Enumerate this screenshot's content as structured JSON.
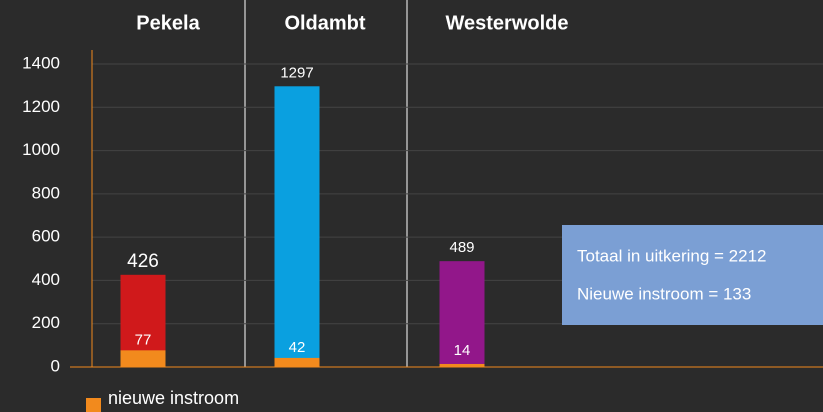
{
  "chart_data": {
    "type": "bar",
    "categories": [
      "Pekela",
      "Oldambt",
      "Westerwolde"
    ],
    "series": [
      {
        "colors": [
          "#d0191b",
          "#0aa0e0",
          "#92178a"
        ],
        "values": [
          426,
          1297,
          489
        ]
      },
      {
        "name": "nieuwe instroom",
        "color": "#f28a1d",
        "values": [
          77,
          42,
          14
        ]
      }
    ],
    "ylim": [
      0,
      1400
    ],
    "yticks": [
      0,
      200,
      400,
      600,
      800,
      1000,
      1200,
      1400
    ],
    "grid": true,
    "annotations": [
      "Totaal in uitkering = 2212",
      "Nieuwe instroom = 133"
    ],
    "legend": "bottom-left"
  }
}
